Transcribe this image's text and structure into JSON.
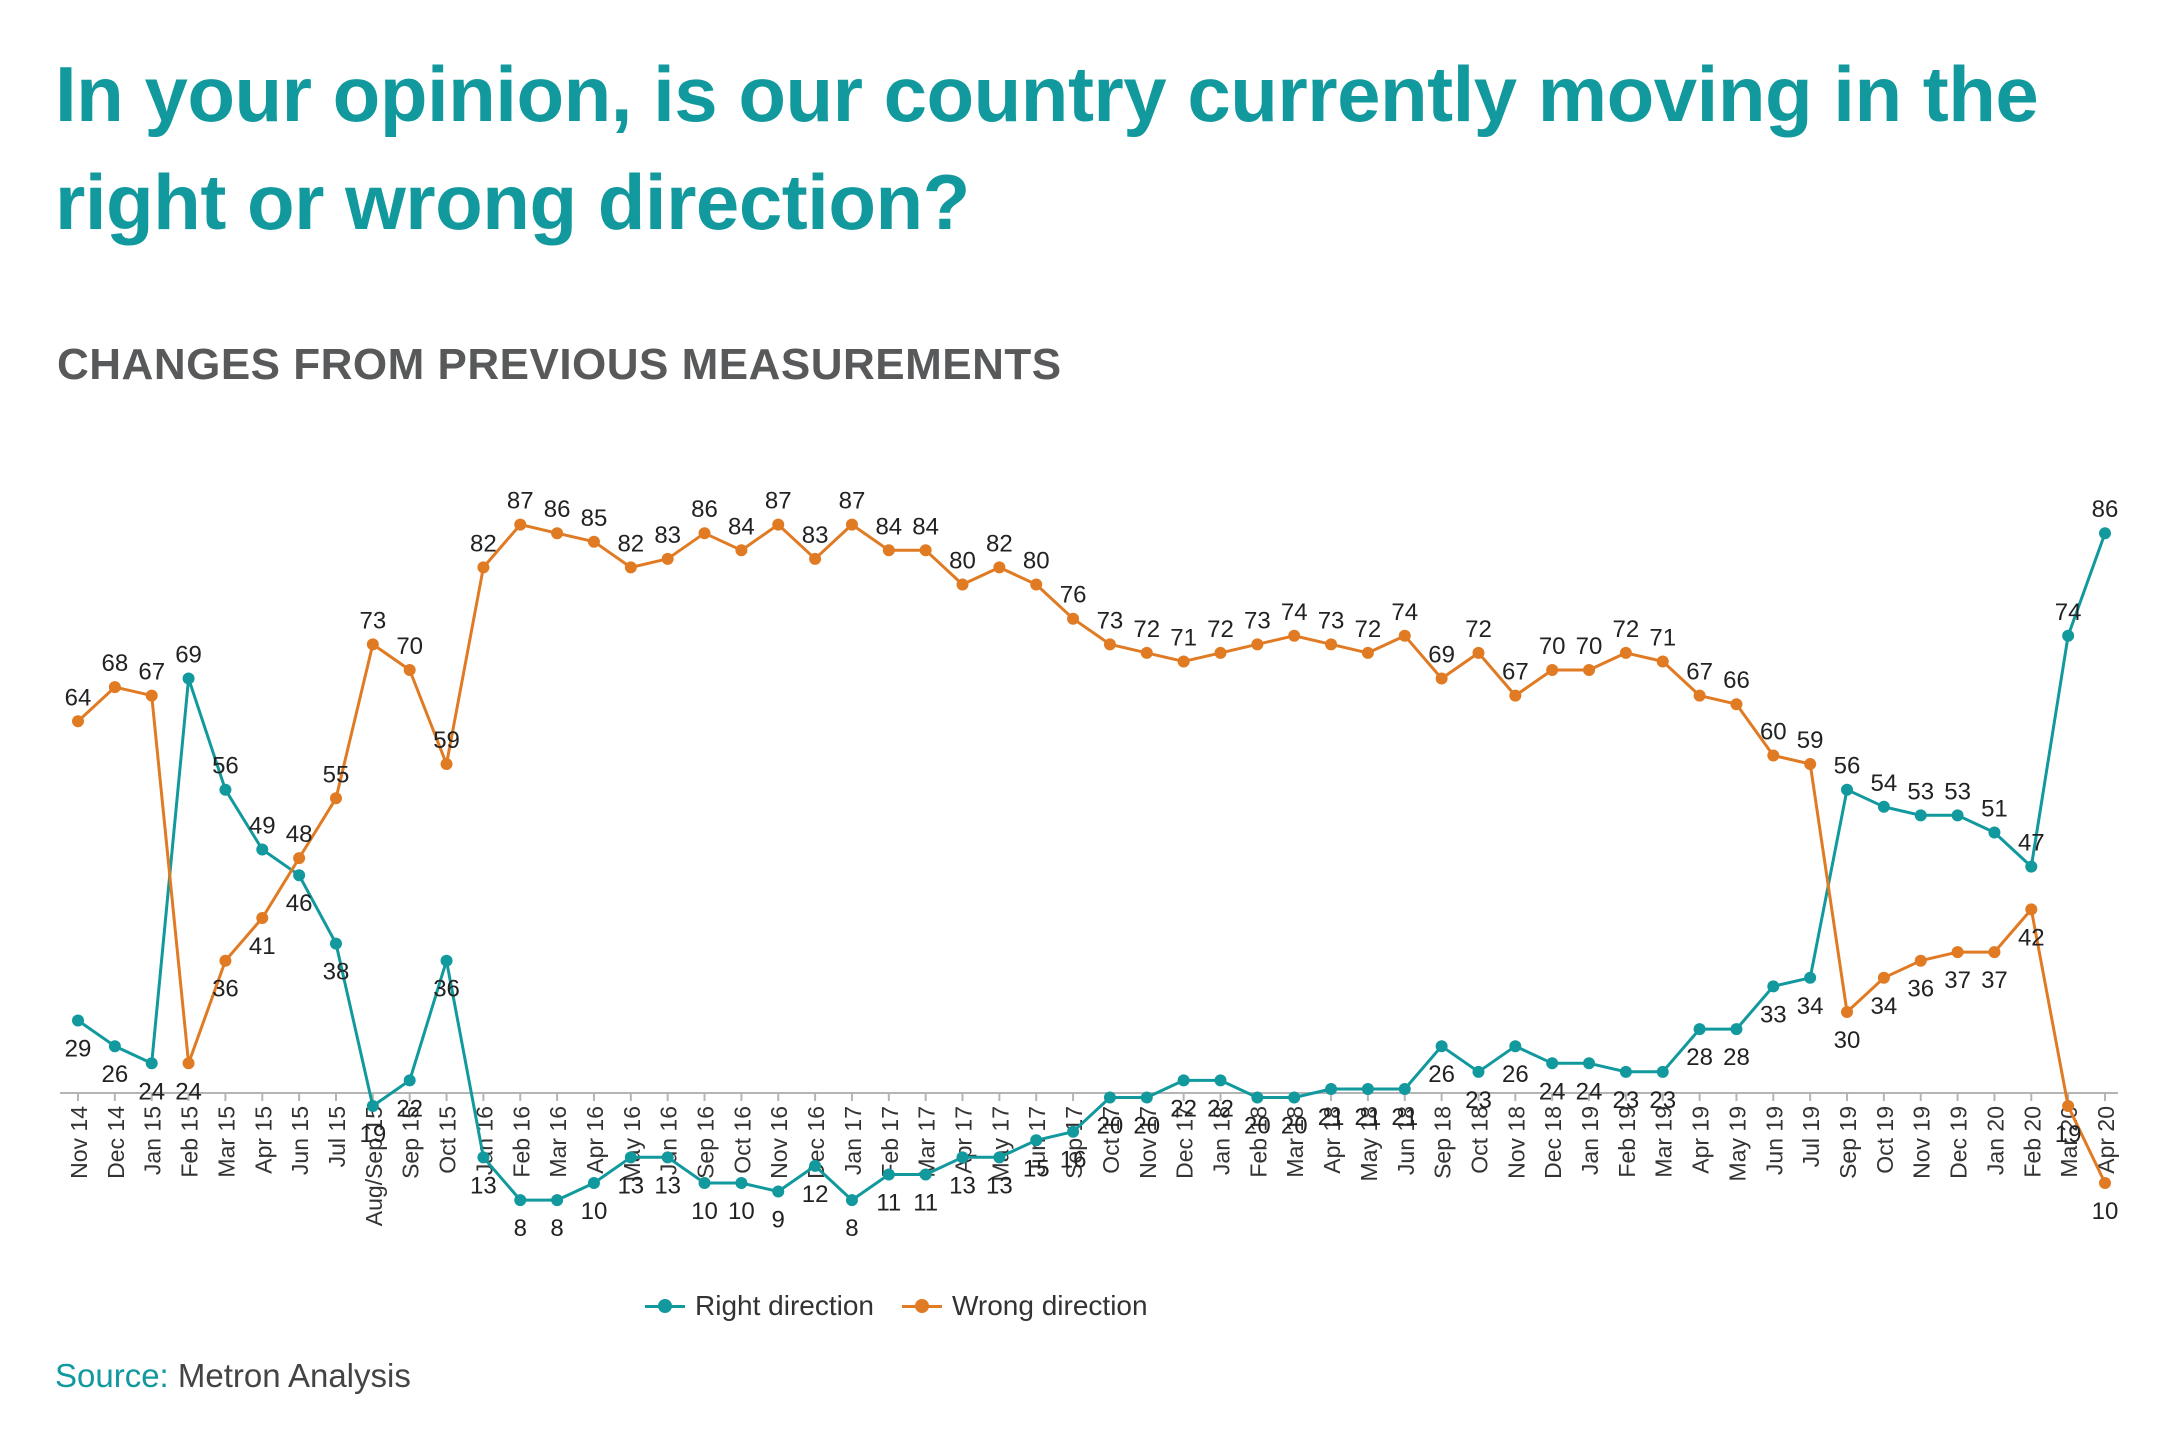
{
  "title": "In your opinion, is our country currently moving in the right or wrong direction?",
  "subtitle": "CHANGES FROM PREVIOUS MEASUREMENTS",
  "source": {
    "label": "Source:",
    "text": "Metron Analysis"
  },
  "colors": {
    "title": "#11999e",
    "right": "#11999e",
    "wrong": "#e07b24",
    "subtitle": "#58595b"
  },
  "chart_data": {
    "type": "line",
    "title": "",
    "xlabel": "",
    "ylabel": "",
    "ylim": [
      0,
      100
    ],
    "grid": false,
    "legend_position": "bottom",
    "categories": [
      "Nov 14",
      "Dec 14",
      "Jan 15",
      "Feb 15",
      "Mar 15",
      "Apr 15",
      "Jun 15",
      "Jul 15",
      "Aug/Sep 15",
      "Sep 15",
      "Oct 15",
      "Jan 16",
      "Feb 16",
      "Mar 16",
      "Apr 16",
      "May 16",
      "Jun 16",
      "Sep 16",
      "Oct 16",
      "Nov 16",
      "Dec 16",
      "Jan 17",
      "Feb 17",
      "Mar 17",
      "Apr 17",
      "May 17",
      "Jun 17",
      "Sep 17",
      "Oct 17",
      "Nov 17",
      "Dec 17",
      "Jan 18",
      "Feb 18",
      "Mar 18",
      "Apr 18",
      "May 18",
      "Jun 18",
      "Sep 18",
      "Oct 18",
      "Nov 18",
      "Dec 18",
      "Jan 19",
      "Feb 19",
      "Mar 19",
      "Apr 19",
      "May 19",
      "Jun 19",
      "Jul 19",
      "Sep 19",
      "Oct 19",
      "Nov 19",
      "Dec 19",
      "Jan 20",
      "Feb 20",
      "Mar 20",
      "Apr 20"
    ],
    "series": [
      {
        "name": "Right direction",
        "color": "#11999e",
        "values": [
          29,
          26,
          24,
          69,
          56,
          49,
          46,
          38,
          19,
          22,
          36,
          13,
          8,
          8,
          10,
          13,
          13,
          10,
          10,
          9,
          12,
          8,
          11,
          11,
          13,
          13,
          15,
          16,
          20,
          20,
          22,
          22,
          20,
          20,
          21,
          21,
          21,
          26,
          23,
          26,
          24,
          24,
          23,
          23,
          28,
          28,
          33,
          34,
          56,
          54,
          53,
          53,
          51,
          47,
          74,
          86
        ]
      },
      {
        "name": "Wrong direction",
        "color": "#e07b24",
        "values": [
          64,
          68,
          67,
          24,
          36,
          41,
          48,
          55,
          73,
          70,
          59,
          82,
          87,
          86,
          85,
          82,
          83,
          86,
          84,
          87,
          83,
          87,
          84,
          84,
          80,
          82,
          80,
          76,
          73,
          72,
          71,
          72,
          73,
          74,
          73,
          72,
          74,
          69,
          72,
          67,
          70,
          70,
          72,
          71,
          67,
          66,
          60,
          59,
          30,
          34,
          36,
          37,
          37,
          42,
          19,
          10
        ]
      }
    ]
  }
}
